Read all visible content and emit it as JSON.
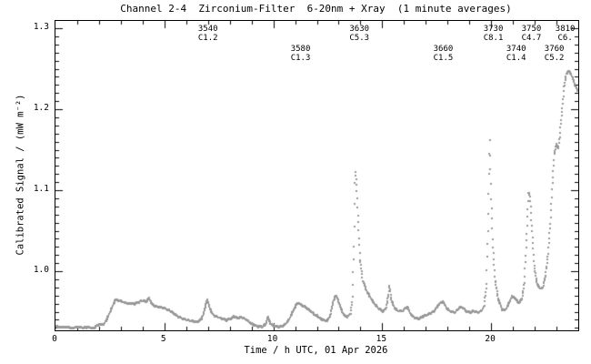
{
  "chart_data": {
    "type": "scatter",
    "title": "Channel 2-4  Zirconium-Filter  6-20nm + Xray  (1 minute averages)",
    "xlabel": "Time / h UTC, 01 Apr 2026",
    "ylabel": "Calibrated Signal / (mW m⁻²)",
    "xlim": [
      0,
      24
    ],
    "ylim": [
      0.927,
      1.309
    ],
    "x_ticks": {
      "labels": [
        "0",
        "5",
        "10",
        "15",
        "20"
      ],
      "values": [
        0,
        5,
        10,
        15,
        20
      ],
      "minor_step": 1
    },
    "y_ticks": {
      "labels": [
        "1.0",
        "1.1",
        "1.2",
        "1.3"
      ],
      "values": [
        1.0,
        1.1,
        1.2,
        1.3
      ],
      "minor_step": 0.01
    },
    "grid": "off",
    "legend": "none",
    "dot_color": "#999999",
    "axis_color": "#000000",
    "cadence_minutes": 1,
    "annotations": [
      {
        "label": "3540",
        "class": "C1.2",
        "time_h": 7.0,
        "row": 0
      },
      {
        "label": "3580",
        "class": "C1.3",
        "time_h": 11.25,
        "row": 1
      },
      {
        "label": "3630",
        "class": "C5.3",
        "time_h": 13.95,
        "row": 0
      },
      {
        "label": "3660",
        "class": "C1.5",
        "time_h": 17.8,
        "row": 1
      },
      {
        "label": "3730",
        "class": "C8.1",
        "time_h": 20.1,
        "row": 0
      },
      {
        "label": "3740",
        "class": "C1.4",
        "time_h": 21.15,
        "row": 1
      },
      {
        "label": "3750",
        "class": "C4.7",
        "time_h": 21.85,
        "row": 0
      },
      {
        "label": "3760",
        "class": "C5.2",
        "time_h": 22.9,
        "row": 1
      },
      {
        "label": "3810",
        "class": "C6.",
        "time_h": 23.4,
        "row": 0
      }
    ],
    "series": [
      {
        "name": "Zirconium-Filter 6-20nm + Xray",
        "points": [
          [
            0.0,
            0.9315
          ],
          [
            0.25,
            0.9305
          ],
          [
            0.5,
            0.9315
          ],
          [
            0.75,
            0.93
          ],
          [
            1.0,
            0.931
          ],
          [
            1.25,
            0.93
          ],
          [
            1.5,
            0.931
          ],
          [
            1.75,
            0.9295
          ],
          [
            1.9,
            0.933
          ],
          [
            2.05,
            0.9345
          ],
          [
            2.2,
            0.934
          ],
          [
            2.35,
            0.94
          ],
          [
            2.5,
            0.949
          ],
          [
            2.65,
            0.958
          ],
          [
            2.75,
            0.9649
          ],
          [
            2.9,
            0.964
          ],
          [
            3.2,
            0.9611
          ],
          [
            3.6,
            0.9596
          ],
          [
            4.0,
            0.9636
          ],
          [
            4.15,
            0.962
          ],
          [
            4.3,
            0.9667
          ],
          [
            4.45,
            0.9585
          ],
          [
            4.7,
            0.956
          ],
          [
            5.0,
            0.9545
          ],
          [
            5.3,
            0.9505
          ],
          [
            5.6,
            0.9445
          ],
          [
            5.9,
            0.9405
          ],
          [
            6.2,
            0.9385
          ],
          [
            6.5,
            0.9375
          ],
          [
            6.7,
            0.9405
          ],
          [
            6.85,
            0.953
          ],
          [
            6.95,
            0.9655
          ],
          [
            7.05,
            0.957
          ],
          [
            7.2,
            0.947
          ],
          [
            7.4,
            0.944
          ],
          [
            7.6,
            0.942
          ],
          [
            7.85,
            0.9395
          ],
          [
            8.1,
            0.942
          ],
          [
            8.2,
            0.9445
          ],
          [
            8.35,
            0.942
          ],
          [
            8.55,
            0.9435
          ],
          [
            8.75,
            0.9405
          ],
          [
            9.0,
            0.935
          ],
          [
            9.25,
            0.932
          ],
          [
            9.5,
            0.9315
          ],
          [
            9.65,
            0.934
          ],
          [
            9.75,
            0.944
          ],
          [
            9.85,
            0.936
          ],
          [
            10.0,
            0.9325
          ],
          [
            10.25,
            0.9315
          ],
          [
            10.5,
            0.933
          ],
          [
            10.7,
            0.939
          ],
          [
            10.9,
            0.9505
          ],
          [
            11.05,
            0.9585
          ],
          [
            11.15,
            0.961
          ],
          [
            11.3,
            0.958
          ],
          [
            11.5,
            0.955
          ],
          [
            11.7,
            0.951
          ],
          [
            11.9,
            0.9465
          ],
          [
            12.1,
            0.943
          ],
          [
            12.3,
            0.9395
          ],
          [
            12.45,
            0.9385
          ],
          [
            12.6,
            0.944
          ],
          [
            12.75,
            0.962
          ],
          [
            12.85,
            0.97
          ],
          [
            12.95,
            0.9665
          ],
          [
            13.1,
            0.954
          ],
          [
            13.25,
            0.9455
          ],
          [
            13.4,
            0.9435
          ],
          [
            13.55,
            0.948
          ],
          [
            13.63,
            0.965
          ],
          [
            13.7,
            1.03
          ],
          [
            13.76,
            1.125
          ],
          [
            13.82,
            1.106
          ],
          [
            13.9,
            1.06
          ],
          [
            13.98,
            1.015
          ],
          [
            14.1,
            0.989
          ],
          [
            14.3,
            0.975
          ],
          [
            14.6,
            0.961
          ],
          [
            14.85,
            0.9535
          ],
          [
            15.05,
            0.9505
          ],
          [
            15.17,
            0.954
          ],
          [
            15.28,
            0.97
          ],
          [
            15.33,
            0.9825
          ],
          [
            15.42,
            0.964
          ],
          [
            15.55,
            0.9555
          ],
          [
            15.7,
            0.951
          ],
          [
            15.9,
            0.9505
          ],
          [
            16.05,
            0.954
          ],
          [
            16.15,
            0.956
          ],
          [
            16.3,
            0.947
          ],
          [
            16.5,
            0.942
          ],
          [
            16.7,
            0.9415
          ],
          [
            16.9,
            0.9445
          ],
          [
            17.15,
            0.947
          ],
          [
            17.4,
            0.951
          ],
          [
            17.6,
            0.959
          ],
          [
            17.8,
            0.9625
          ],
          [
            17.95,
            0.9545
          ],
          [
            18.15,
            0.95
          ],
          [
            18.35,
            0.949
          ],
          [
            18.55,
            0.9555
          ],
          [
            18.7,
            0.955
          ],
          [
            18.85,
            0.9505
          ],
          [
            19.05,
            0.9495
          ],
          [
            19.25,
            0.951
          ],
          [
            19.4,
            0.949
          ],
          [
            19.55,
            0.951
          ],
          [
            19.68,
            0.957
          ],
          [
            19.78,
            0.982
          ],
          [
            19.86,
            1.06
          ],
          [
            19.93,
            1.165
          ],
          [
            20.0,
            1.09
          ],
          [
            20.08,
            1.03
          ],
          [
            20.18,
            0.989
          ],
          [
            20.32,
            0.966
          ],
          [
            20.5,
            0.953
          ],
          [
            20.62,
            0.9515
          ],
          [
            20.78,
            0.958
          ],
          [
            20.95,
            0.969
          ],
          [
            21.1,
            0.9665
          ],
          [
            21.25,
            0.961
          ],
          [
            21.4,
            0.9645
          ],
          [
            21.52,
            0.986
          ],
          [
            21.63,
            1.045
          ],
          [
            21.72,
            1.098
          ],
          [
            21.79,
            1.092
          ],
          [
            21.88,
            1.05
          ],
          [
            21.98,
            1.007
          ],
          [
            22.1,
            0.9855
          ],
          [
            22.25,
            0.978
          ],
          [
            22.38,
            0.98
          ],
          [
            22.5,
            0.995
          ],
          [
            22.62,
            1.023
          ],
          [
            22.72,
            1.06
          ],
          [
            22.82,
            1.11
          ],
          [
            22.9,
            1.145
          ],
          [
            23.0,
            1.157
          ],
          [
            23.08,
            1.1505
          ],
          [
            23.15,
            1.166
          ],
          [
            23.25,
            1.197
          ],
          [
            23.35,
            1.227
          ],
          [
            23.45,
            1.2435
          ],
          [
            23.55,
            1.247
          ],
          [
            23.65,
            1.2445
          ],
          [
            23.75,
            1.238
          ],
          [
            23.85,
            1.2295
          ],
          [
            23.97,
            1.2225
          ]
        ]
      }
    ]
  }
}
